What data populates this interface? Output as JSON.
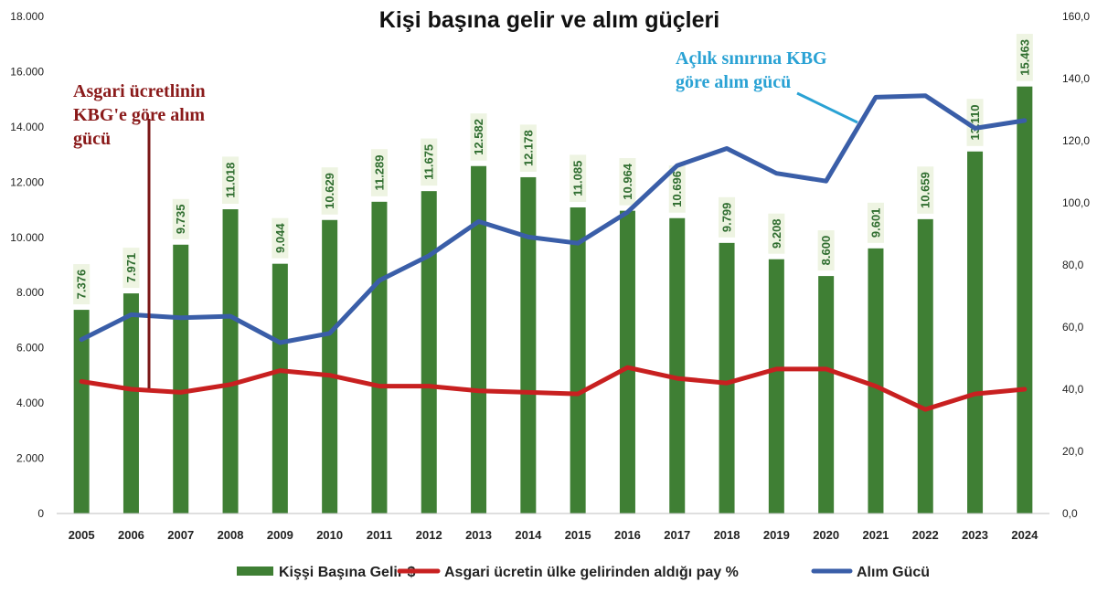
{
  "chart_data": {
    "type": "bar",
    "title": "Kişi başına gelir ve alım güçleri",
    "categories": [
      "2005",
      "2006",
      "2007",
      "2008",
      "2009",
      "2010",
      "2011",
      "2012",
      "2013",
      "2014",
      "2015",
      "2016",
      "2017",
      "2018",
      "2019",
      "2020",
      "2021",
      "2022",
      "2023",
      "2024"
    ],
    "y_left": {
      "ylim": [
        0,
        18000
      ],
      "ticks": [
        0,
        2000,
        4000,
        6000,
        8000,
        10000,
        12000,
        14000,
        16000,
        18000
      ],
      "tick_labels": [
        "0",
        "2.000",
        "4.000",
        "6.000",
        "8.000",
        "10.000",
        "12.000",
        "14.000",
        "16.000",
        "18.000"
      ]
    },
    "y_right": {
      "ylim": [
        0,
        160
      ],
      "ticks": [
        0,
        20,
        40,
        60,
        80,
        100,
        120,
        140,
        160
      ],
      "tick_labels": [
        "0,0",
        "20,0",
        "40,0",
        "60,0",
        "80,0",
        "100,0",
        "120,0",
        "140,0",
        "160,0"
      ]
    },
    "series": [
      {
        "name": "Kişşi Başına Gelir $",
        "type": "bar",
        "axis": "left",
        "color": "#3f7f34",
        "values": [
          7376,
          7971,
          9735,
          11018,
          9044,
          10629,
          11289,
          11675,
          12582,
          12178,
          11085,
          10964,
          10696,
          9799,
          9208,
          8600,
          9601,
          10659,
          13110,
          15463
        ],
        "data_labels": [
          "7.376",
          "7.971",
          "9.735",
          "11.018",
          "9.044",
          "10.629",
          "11.289",
          "11.675",
          "12.582",
          "12.178",
          "11.085",
          "10.964",
          "10.696",
          "9.799",
          "9.208",
          "8.600",
          "9.601",
          "10.659",
          "13.110",
          "15.463"
        ]
      },
      {
        "name": "Asgari ücretin ülke gelirinden aldığı pay %",
        "type": "line",
        "axis": "right",
        "color": "#c82020",
        "values": [
          42.5,
          40,
          39,
          41.5,
          46,
          44.5,
          41,
          41,
          39.5,
          39,
          38.5,
          47,
          43.5,
          42,
          46.5,
          46.5,
          41,
          33.5,
          38.5,
          40
        ]
      },
      {
        "name": "Alım Gücü",
        "type": "line",
        "axis": "right",
        "color": "#3a5ea8",
        "values": [
          56,
          64,
          63,
          63.5,
          55,
          58,
          75,
          83,
          94,
          89,
          87,
          97,
          112,
          117.5,
          109.5,
          107,
          134,
          134.5,
          124,
          126.5
        ]
      }
    ],
    "annotations": {
      "red_lines": [
        "Asgari ücretlinin",
        "KBG'e göre alım",
        "gücü"
      ],
      "blue_lines": [
        "Açlık sınırına KBG",
        "göre alım gücü"
      ]
    },
    "legend": {
      "placement": "bottom"
    },
    "grid": false
  }
}
